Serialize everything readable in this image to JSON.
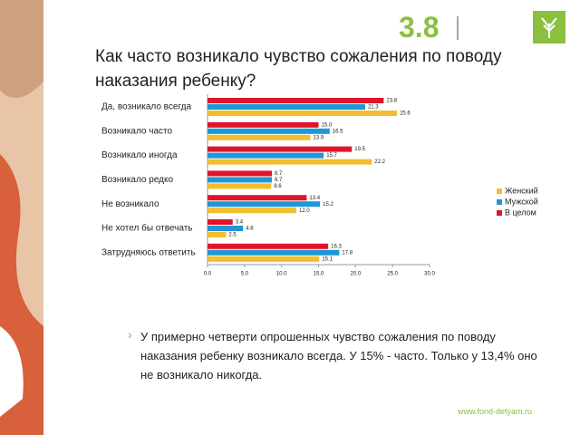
{
  "section_number": "3.8",
  "footer": "www.fond-detyam.ru",
  "note": "У примерно четверти опрошенных чувство сожаления по поводу наказания ребенку возникало всегда. У 15% - часто. Только у 13,4% оно не возникало никогда.",
  "chart_data": {
    "type": "bar",
    "orientation": "horizontal",
    "title": "Как часто возникало чувство сожаления по поводу наказания ребенку?",
    "categories": [
      "Да, возникало всегда",
      "Возникало часто",
      "Возникало иногда",
      "Возникало редко",
      "Не возникало",
      "Не хотел бы отвечать",
      "Затрудняюсь ответить"
    ],
    "series": [
      {
        "name": "Женский",
        "color": "#f2bd2e",
        "values": [
          25.6,
          13.9,
          22.2,
          8.6,
          12.0,
          2.5,
          15.1
        ],
        "value_labels": [
          "25.6",
          "13.9",
          "22.2",
          "8.6",
          "12.0",
          "2.5",
          "15.1"
        ]
      },
      {
        "name": "Мужской",
        "color": "#1f97d4",
        "values": [
          21.3,
          16.5,
          15.7,
          8.7,
          15.2,
          4.8,
          17.8
        ],
        "value_labels": [
          "21.3",
          "16.5",
          "15.7",
          "8.7",
          "15.2",
          "4.8",
          "17.8"
        ]
      },
      {
        "name": "В целом",
        "color": "#e0142c",
        "values": [
          23.8,
          15.0,
          19.5,
          8.7,
          13.4,
          3.4,
          16.3
        ],
        "value_labels": [
          "23.8",
          "15.0",
          "19.5",
          "8.7",
          "13.4",
          "3.4",
          "16.3"
        ]
      }
    ],
    "xlim": [
      0,
      30
    ],
    "xticks": [
      {
        "value": 0,
        "label": "0.0"
      },
      {
        "value": 5,
        "label": "5.0"
      },
      {
        "value": 10,
        "label": "10.0"
      },
      {
        "value": 15,
        "label": "15.0"
      },
      {
        "value": 20,
        "label": "20.0"
      },
      {
        "value": 25,
        "label": "25.0"
      },
      {
        "value": 30,
        "label": "30.0"
      }
    ],
    "legend": "right"
  }
}
